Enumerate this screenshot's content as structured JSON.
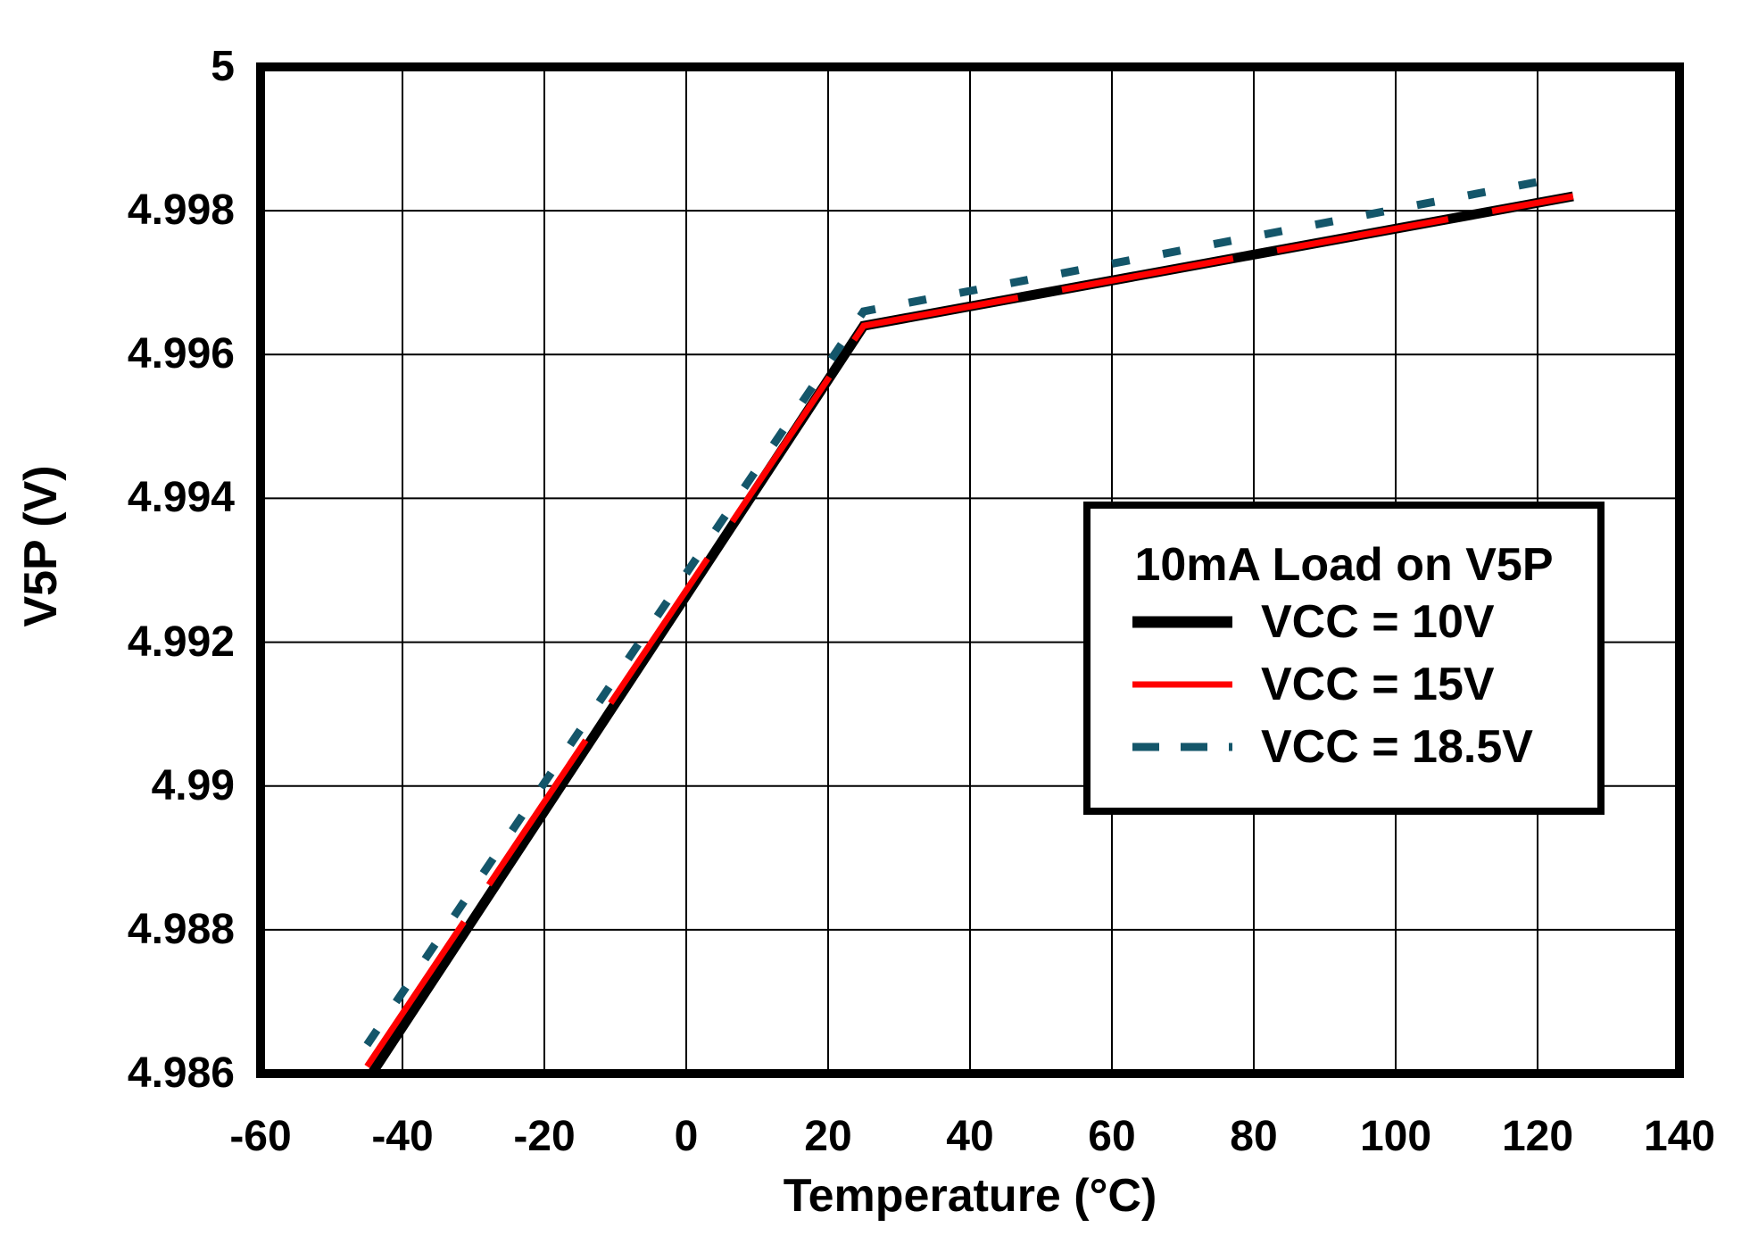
{
  "figure": {
    "background_color": "#FFFFFF",
    "axis_color": "#000000",
    "grid_color": "#000000",
    "text_color": "#000000"
  },
  "chart_data": {
    "type": "line",
    "title": "",
    "xlabel": "Temperature (°C)",
    "ylabel": "V5P (V)",
    "xlim": [
      -60,
      140
    ],
    "ylim": [
      4.986,
      5
    ],
    "x_tick_step": 20,
    "y_tick_step": 0.002,
    "grid": true,
    "legend_title": "10mA Load on V5P",
    "legend_position": "inside-lower-right",
    "x_ticks": [
      {
        "value": -60,
        "label": "-60"
      },
      {
        "value": -40,
        "label": "-40"
      },
      {
        "value": -20,
        "label": "-20"
      },
      {
        "value": 0,
        "label": "0"
      },
      {
        "value": 20,
        "label": "20"
      },
      {
        "value": 40,
        "label": "40"
      },
      {
        "value": 60,
        "label": "60"
      },
      {
        "value": 80,
        "label": "80"
      },
      {
        "value": 100,
        "label": "100"
      },
      {
        "value": 120,
        "label": "120"
      },
      {
        "value": 140,
        "label": "140"
      }
    ],
    "y_ticks": [
      {
        "value": 5,
        "label": "5"
      },
      {
        "value": 4.998,
        "label": "4.998"
      },
      {
        "value": 4.996,
        "label": "4.996"
      },
      {
        "value": 4.994,
        "label": "4.994"
      },
      {
        "value": 4.992,
        "label": "4.992"
      },
      {
        "value": 4.99,
        "label": "4.99"
      },
      {
        "value": 4.988,
        "label": "4.988"
      },
      {
        "value": 4.986,
        "label": "4.986"
      }
    ],
    "series": [
      {
        "name": "VCC = 10V",
        "color": "#000000",
        "line_style": "solid",
        "stroke_width": 11,
        "points": [
          [
            -45,
            4.9859
          ],
          [
            25,
            4.9964
          ],
          [
            125,
            4.9982
          ]
        ]
      },
      {
        "name": "VCC = 15V",
        "color": "#FF0000",
        "line_style": "solid",
        "stroke_width": 7,
        "overdraw_dash": [
          195,
          50
        ],
        "points": [
          [
            -45,
            4.9861
          ],
          [
            25,
            4.9964
          ],
          [
            125,
            4.9982
          ]
        ]
      },
      {
        "name": "VCC = 18.5V",
        "color": "#14566A",
        "line_style": "dashed",
        "dash_pattern": [
          20,
          38
        ],
        "stroke_width": 9,
        "points": [
          [
            -45,
            4.9864
          ],
          [
            25,
            4.9966
          ],
          [
            120,
            4.9984
          ]
        ]
      }
    ]
  }
}
